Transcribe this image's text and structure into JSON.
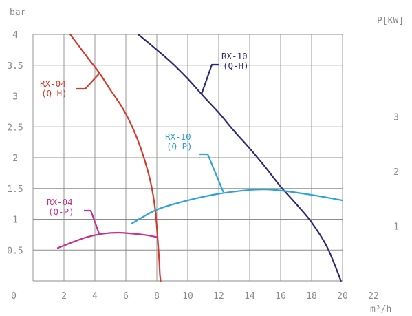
{
  "chart_data": {
    "type": "line",
    "title": "",
    "xlabel": "m³/h",
    "ylabel": "bar",
    "y2label": "P[KW]",
    "xlim": [
      0,
      20
    ],
    "ylim": [
      0,
      4
    ],
    "y2lim": [
      0,
      4.5
    ],
    "grid": true,
    "x_ticks": [
      "0",
      "2",
      "4",
      "6",
      "8",
      "10",
      "12",
      "14",
      "16",
      "18",
      "20",
      "22"
    ],
    "y_ticks": [
      "0",
      "0.5",
      "1",
      "1.5",
      "2",
      "2.5",
      "3",
      "3.5",
      "4"
    ],
    "y2_ticks": [
      "1",
      "2",
      "3"
    ],
    "colors": {
      "rx04_qh": "#d43a2a",
      "rx10_qh": "#2b2a78",
      "rx10_qp": "#2aa3d8",
      "rx04_qp": "#c8308c",
      "grid": "#8c8c8c",
      "labels": "#8a8a8a"
    },
    "series": [
      {
        "key": "rx04_qh",
        "axis": "left",
        "x": [
          2.4,
          3.0,
          3.6,
          4.3,
          5.0,
          5.8,
          6.5,
          7.1,
          7.6,
          7.9,
          8.05,
          8.15,
          8.2,
          8.25
        ],
        "y": [
          4.0,
          3.8,
          3.6,
          3.37,
          3.1,
          2.8,
          2.45,
          2.05,
          1.6,
          1.15,
          0.7,
          0.35,
          0.1,
          0.0
        ]
      },
      {
        "key": "rx10_qh",
        "axis": "left",
        "x": [
          6.8,
          8.0,
          9.0,
          10.0,
          11.0,
          12.0,
          13.0,
          14.0,
          15.0,
          16.0,
          17.0,
          18.0,
          19.0,
          19.9
        ],
        "y": [
          4.0,
          3.75,
          3.53,
          3.28,
          3.0,
          2.73,
          2.43,
          2.15,
          1.85,
          1.53,
          1.25,
          0.95,
          0.55,
          0.0
        ]
      },
      {
        "key": "rx10_qp",
        "axis": "right",
        "x": [
          6.4,
          8.0,
          10.0,
          12.0,
          14.0,
          15.0,
          16.0,
          18.0,
          20.0
        ],
        "y": [
          1.05,
          1.3,
          1.47,
          1.59,
          1.66,
          1.67,
          1.65,
          1.57,
          1.47
        ]
      },
      {
        "key": "rx04_qp",
        "axis": "right",
        "x": [
          1.6,
          2.5,
          3.5,
          4.5,
          5.5,
          6.5,
          7.2,
          8.0
        ],
        "y": [
          0.6,
          0.7,
          0.8,
          0.86,
          0.88,
          0.86,
          0.84,
          0.8
        ]
      }
    ],
    "annotations": [
      {
        "key": "rx04_qh",
        "line1": "RX-04",
        "line2": "(Q-H)",
        "target_x": 4.3,
        "target_y": 3.37
      },
      {
        "key": "rx10_qh",
        "line1": "RX-10",
        "line2": "(Q-H)",
        "target_x": 10.9,
        "target_y": 3.04
      },
      {
        "key": "rx10_qp",
        "line1": "RX-10",
        "line2": "(Q-P)",
        "target_x": 12.3,
        "target_y": 1.62
      },
      {
        "key": "rx04_qp",
        "line1": "RX-04",
        "line2": "(Q-P)",
        "target_x": 4.3,
        "target_y": 0.84
      }
    ]
  }
}
